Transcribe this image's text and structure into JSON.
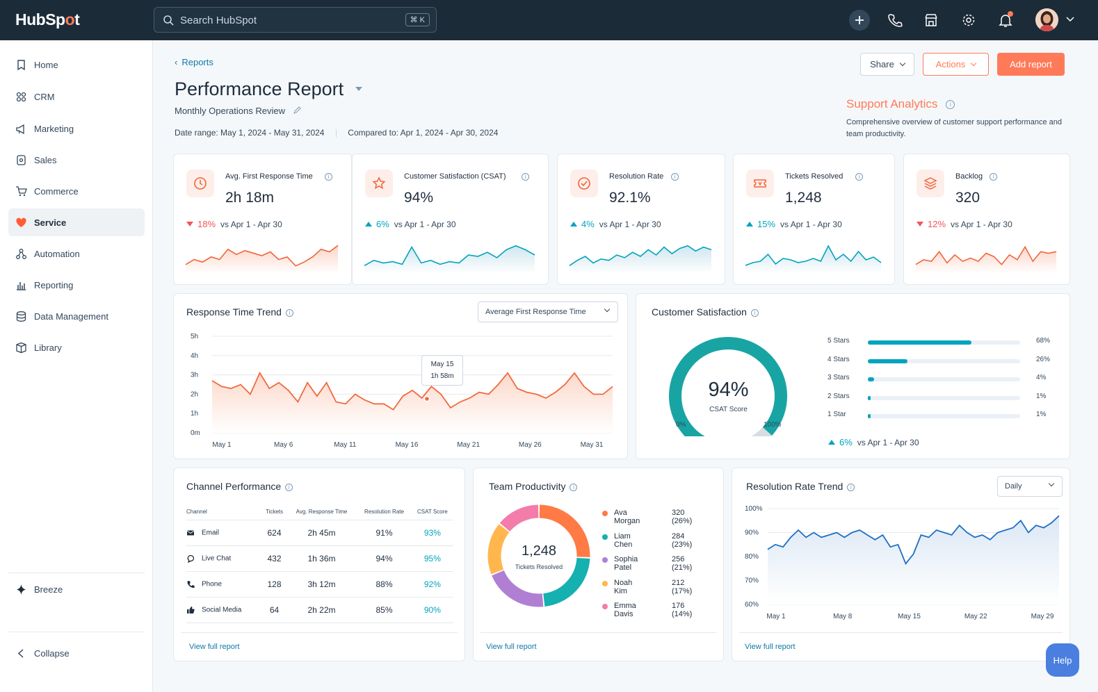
{
  "app": {
    "logo_text_a": "HubSp",
    "logo_text_b": "t"
  },
  "search": {
    "placeholder": "Search HubSpot",
    "shortcut": "⌘ K"
  },
  "sidebar": {
    "items": [
      {
        "label": "Home",
        "icon": "bookmark-icon"
      },
      {
        "label": "CRM",
        "icon": "contacts-icon"
      },
      {
        "label": "Marketing",
        "icon": "megaphone-icon"
      },
      {
        "label": "Sales",
        "icon": "sales-icon"
      },
      {
        "label": "Commerce",
        "icon": "cart-icon"
      },
      {
        "label": "Service",
        "icon": "heart-icon"
      },
      {
        "label": "Automation",
        "icon": "automation-icon"
      },
      {
        "label": "Reporting",
        "icon": "bar-chart-icon"
      },
      {
        "label": "Data Management",
        "icon": "database-icon"
      },
      {
        "label": "Library",
        "icon": "library-icon"
      }
    ],
    "breeze": "Breeze",
    "collapse": "Collapse"
  },
  "header": {
    "breadcrumb": "Reports",
    "title": "Performance Report",
    "subtitle": "Monthly Operations Review",
    "date_range": "Date range: May 1, 2024 - May 31, 2024",
    "compared_to": "Compared to: Apr 1, 2024 - Apr 30, 2024",
    "share": "Share",
    "actions": "Actions",
    "add_report": "Add report"
  },
  "support_analytics": {
    "title": "Support Analytics",
    "description": "Comprehensive overview of customer support performance and team productivity."
  },
  "kpis": [
    {
      "label": "Avg. First Response Time",
      "value": "2h 18m",
      "delta": "18%",
      "direction": "down",
      "compare": "vs Apr 1 - Apr 30",
      "icon": "clock-icon",
      "color": "#f2643a",
      "spark": [
        18,
        22,
        20,
        24,
        22,
        30,
        26,
        29,
        27,
        25,
        28,
        22,
        24,
        17,
        20,
        24,
        30,
        28,
        33
      ]
    },
    {
      "label": "Customer Satisfaction (CSAT)",
      "value": "94%",
      "delta": "6%",
      "direction": "up",
      "compare": "vs Apr 1 - Apr 30",
      "icon": "star-icon",
      "color": "#00a4bd",
      "spark": [
        10,
        14,
        12,
        13,
        11,
        24,
        12,
        14,
        11,
        13,
        12,
        18,
        17,
        20,
        16,
        22,
        25,
        22,
        18
      ]
    },
    {
      "label": "Resolution Rate",
      "value": "92.1%",
      "delta": "4%",
      "direction": "up",
      "compare": "vs Apr 1 - Apr 30",
      "icon": "check-circle-icon",
      "color": "#00a4bd",
      "spark": [
        12,
        16,
        19,
        14,
        17,
        16,
        20,
        18,
        22,
        19,
        24,
        20,
        26,
        21,
        25,
        27,
        23,
        26,
        24
      ]
    },
    {
      "label": "Tickets Resolved",
      "value": "1,248",
      "delta": "15%",
      "direction": "up",
      "compare": "vs Apr 1 - Apr 30",
      "icon": "ticket-icon",
      "color": "#00a4bd",
      "spark": [
        14,
        16,
        17,
        22,
        15,
        19,
        18,
        16,
        17,
        19,
        17,
        28,
        18,
        22,
        17,
        24,
        18,
        20,
        16
      ]
    },
    {
      "label": "Backlog",
      "value": "320",
      "delta": "12%",
      "direction": "down",
      "compare": "vs Apr 1 - Apr 30",
      "icon": "layers-icon",
      "color": "#f2643a",
      "spark": [
        16,
        19,
        18,
        24,
        17,
        22,
        18,
        20,
        18,
        23,
        21,
        16,
        22,
        19,
        27,
        18,
        24,
        23,
        24
      ]
    }
  ],
  "response_trend": {
    "title": "Response Time Trend",
    "dropdown": "Average First Response Time",
    "tooltip_date": "May 15",
    "tooltip_value": "1h 58m",
    "chart_data": {
      "type": "area",
      "y_ticks": [
        "5h",
        "4h",
        "3h",
        "2h",
        "1h",
        "0m"
      ],
      "ylim": [
        0,
        5
      ],
      "x_labels": [
        "May 1",
        "May 6",
        "May 11",
        "May 16",
        "May 21",
        "May 26",
        "May 31"
      ],
      "values": [
        2.7,
        2.4,
        2.3,
        2.5,
        2.0,
        3.1,
        2.3,
        2.6,
        2.2,
        1.6,
        2.6,
        1.9,
        2.6,
        1.6,
        1.5,
        2.0,
        1.7,
        1.5,
        1.5,
        1.2,
        1.9,
        2.2,
        1.8,
        2.4,
        2.0,
        1.3,
        1.6,
        1.8,
        2.1,
        2.0,
        2.5,
        3.1,
        2.3,
        2.1,
        2.0,
        1.8,
        2.1,
        2.5,
        3.1,
        2.4,
        2.0,
        2.0,
        2.4
      ]
    }
  },
  "customer_satisfaction": {
    "title": "Customer Satisfaction",
    "score": "94%",
    "score_label": "CSAT Score",
    "gauge_min": "0%",
    "gauge_max": "100%",
    "gauge_fraction": 0.94,
    "rows": [
      {
        "label": "5 Stars",
        "pct": "68%",
        "value": 68
      },
      {
        "label": "4 Stars",
        "pct": "26%",
        "value": 26
      },
      {
        "label": "3 Stars",
        "pct": "4%",
        "value": 4
      },
      {
        "label": "2 Stars",
        "pct": "1%",
        "value": 1
      },
      {
        "label": "1 Star",
        "pct": "1%",
        "value": 1
      }
    ],
    "delta": "6%",
    "compare": "vs Apr 1 - Apr 30"
  },
  "channel_performance": {
    "title": "Channel Performance",
    "columns": [
      "Channel",
      "Tickets",
      "Avg. Response Time",
      "Resolution Rate",
      "CSAT Score"
    ],
    "rows": [
      {
        "channel": "Email",
        "icon": "mail-icon",
        "tickets": "624",
        "avg": "2h 45m",
        "res": "91%",
        "csat": "93%"
      },
      {
        "channel": "Live Chat",
        "icon": "chat-icon",
        "tickets": "432",
        "avg": "1h 36m",
        "res": "94%",
        "csat": "95%"
      },
      {
        "channel": "Phone",
        "icon": "phone-icon",
        "tickets": "128",
        "avg": "3h 12m",
        "res": "88%",
        "csat": "92%"
      },
      {
        "channel": "Social Media",
        "icon": "thumbs-up-icon",
        "tickets": "64",
        "avg": "2h 22m",
        "res": "85%",
        "csat": "90%"
      }
    ],
    "link": "View full report"
  },
  "team_productivity": {
    "title": "Team Productivity",
    "total": "1,248",
    "total_label": "Tickets Resolved",
    "members": [
      {
        "name": "Ava Morgan",
        "value": "320 (26%)",
        "tickets": 320,
        "color": "#ff7a45"
      },
      {
        "name": "Liam Chen",
        "value": "284 (23%)",
        "tickets": 284,
        "color": "#15b0b0"
      },
      {
        "name": "Sophia Patel",
        "value": "256 (21%)",
        "tickets": 256,
        "color": "#b07fd3"
      },
      {
        "name": "Noah Kim",
        "value": "212 (17%)",
        "tickets": 212,
        "color": "#ffb74d"
      },
      {
        "name": "Emma Davis",
        "value": "176 (14%)",
        "tickets": 176,
        "color": "#f47cab"
      }
    ],
    "link": "View full report"
  },
  "resolution_trend": {
    "title": "Resolution Rate Trend",
    "dropdown": "Daily",
    "chart_data": {
      "type": "area",
      "y_ticks": [
        "100%",
        "90%",
        "80%",
        "70%",
        "60%"
      ],
      "ylim": [
        60,
        100
      ],
      "x_labels": [
        "May 1",
        "May 8",
        "May 15",
        "May 22",
        "May 29"
      ],
      "values": [
        83,
        85,
        84,
        88,
        91,
        88,
        90,
        88,
        89,
        90,
        88,
        90,
        91,
        89,
        87,
        89,
        84,
        85,
        77,
        81,
        89,
        88,
        91,
        90,
        89,
        93,
        90,
        88,
        89,
        87,
        90,
        91,
        92,
        95,
        90,
        93,
        92,
        94,
        97
      ]
    }
  },
  "help": "Help"
}
